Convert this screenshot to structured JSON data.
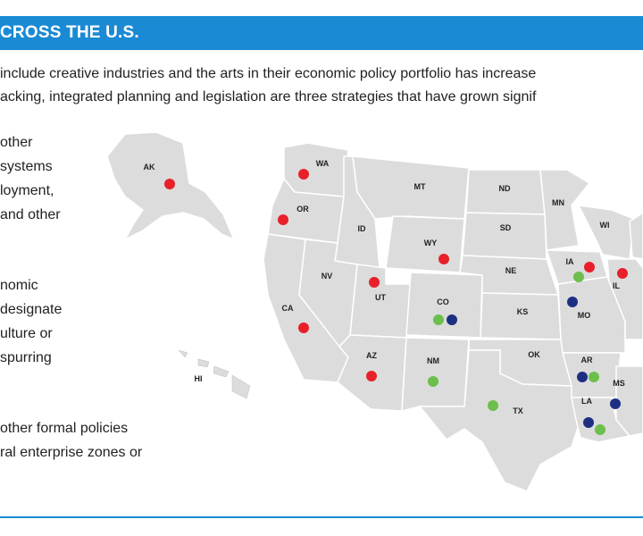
{
  "header": {
    "title": "CROSS THE U.S."
  },
  "intro": {
    "line1": "include creative industries and the arts in their economic policy portfolio has increase",
    "line2": "acking, integrated planning and legislation are three strategies that have grown signif"
  },
  "left_text": {
    "block1": [
      "other",
      "systems",
      "loyment,",
      "and other"
    ],
    "block2": [
      "nomic",
      "designate",
      "ulture or",
      "spurring"
    ],
    "block3": [
      "other formal policies",
      "ral enterprise zones or"
    ]
  },
  "map": {
    "colors": {
      "red": "#e8202a",
      "green": "#6cbf4c",
      "navy": "#1e2f82",
      "land": "#dcdcdc",
      "border": "#ffffff",
      "header": "#1a8ad4"
    },
    "state_labels": [
      "AK",
      "WA",
      "OR",
      "MT",
      "ND",
      "MN",
      "WI",
      "ID",
      "WY",
      "SD",
      "NV",
      "UT",
      "CO",
      "NE",
      "IA",
      "IL",
      "CA",
      "KS",
      "MO",
      "AZ",
      "NM",
      "OK",
      "AR",
      "MS",
      "TX",
      "LA",
      "HI"
    ],
    "markers": [
      {
        "state": "AK",
        "color": "red"
      },
      {
        "state": "WA",
        "color": "red"
      },
      {
        "state": "OR",
        "color": "red"
      },
      {
        "state": "WY",
        "color": "red"
      },
      {
        "state": "UT",
        "color": "red"
      },
      {
        "state": "CA",
        "color": "red"
      },
      {
        "state": "AZ",
        "color": "red"
      },
      {
        "state": "CO",
        "color": "green"
      },
      {
        "state": "CO",
        "color": "navy"
      },
      {
        "state": "IA",
        "color": "green"
      },
      {
        "state": "IA",
        "color": "red"
      },
      {
        "state": "IL",
        "color": "red"
      },
      {
        "state": "MO",
        "color": "navy"
      },
      {
        "state": "NM",
        "color": "green"
      },
      {
        "state": "TX",
        "color": "green"
      },
      {
        "state": "AR",
        "color": "navy"
      },
      {
        "state": "AR",
        "color": "green"
      },
      {
        "state": "MS",
        "color": "navy"
      },
      {
        "state": "LA",
        "color": "navy"
      },
      {
        "state": "LA",
        "color": "green"
      }
    ]
  }
}
